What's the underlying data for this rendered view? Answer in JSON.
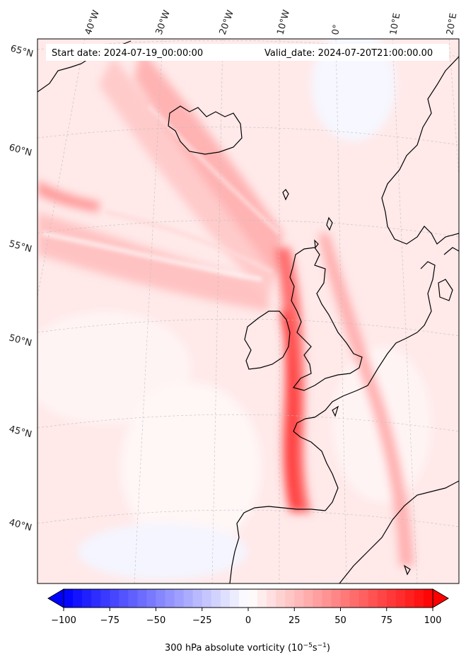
{
  "header": {
    "start_date": "Start date: 2024-07-19_00:00:00",
    "valid_date": "Valid_date: 2024-07-20T21:00:00.00"
  },
  "map": {
    "longitude_labels": [
      "40°W",
      "30°W",
      "20°W",
      "10°W",
      "0°",
      "10°E",
      "20°E"
    ],
    "latitude_labels": [
      "65°N",
      "60°N",
      "55°N",
      "50°N",
      "45°N",
      "40°N"
    ],
    "field_colors": {
      "strong_positive": "#ff3030",
      "medium_positive": "#ff7a7a",
      "weak_positive": "#ffc4c4",
      "faint_positive": "#ffe8e8",
      "faint_negative": "#eef2ff",
      "coastline": "#000000"
    }
  },
  "colorbar": {
    "tick_labels": [
      "−100",
      "−75",
      "−50",
      "−25",
      "0",
      "25",
      "50",
      "75",
      "100"
    ],
    "title": "300 hPa absolute vorticity (10",
    "title_exp1": "−5",
    "title_mid": "s",
    "title_exp2": "−1",
    "title_end": ")",
    "min": -100,
    "max": 100,
    "low_color": "#0000ff",
    "mid_color": "#ffffff",
    "high_color": "#ff0000"
  }
}
